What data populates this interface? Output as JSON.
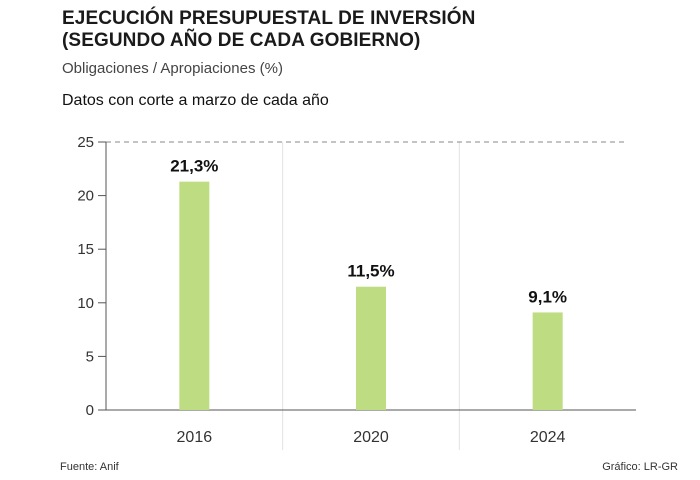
{
  "header": {
    "title_line1": "EJECUCIÓN PRESUPUESTAL DE INVERSIÓN",
    "title_line2": "(SEGUNDO AÑO DE CADA GOBIERNO)",
    "subtitle": "Obligaciones / Apropiaciones (%)",
    "note": "Datos con corte a marzo de cada año"
  },
  "footer": {
    "source": "Fuente: Anif",
    "credit": "Gráfico: LR-GR"
  },
  "colors": {
    "bar": "#bedc82",
    "grid": "#e2e2e2",
    "axis": "#555555"
  },
  "chart_data": {
    "type": "bar",
    "title": "EJECUCIÓN PRESUPUESTAL DE INVERSIÓN (SEGUNDO AÑO DE CADA GOBIERNO)",
    "subtitle": "Obligaciones / Apropiaciones (%)",
    "categories": [
      "2016",
      "2020",
      "2024"
    ],
    "values": [
      21.3,
      11.5,
      9.1
    ],
    "data_labels": [
      "21,3%",
      "11,5%",
      "9,1%"
    ],
    "ylim": [
      0,
      25
    ],
    "yticks": [
      0,
      5,
      10,
      15,
      20,
      25
    ],
    "xlabel": "",
    "ylabel": "",
    "grid": "vertical separators between categories, dashed line at 25",
    "legend": "none"
  }
}
